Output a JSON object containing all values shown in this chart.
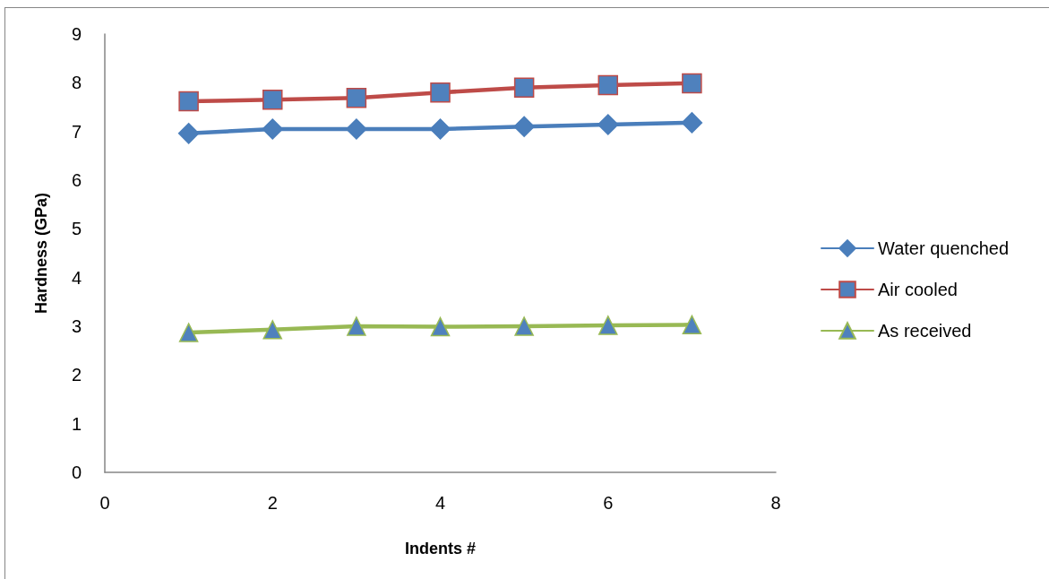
{
  "chart_data": {
    "type": "line",
    "xlabel": "Indents #",
    "ylabel": "Hardness (GPa)",
    "x": [
      1,
      2,
      3,
      4,
      5,
      6,
      7
    ],
    "series": [
      {
        "name": "Water quenched",
        "color": "#4a7ebb",
        "marker": "diamond",
        "values": [
          6.96,
          7.05,
          7.05,
          7.05,
          7.1,
          7.14,
          7.18
        ]
      },
      {
        "name": "Air cooled",
        "color": "#be4b48",
        "marker": "square",
        "colors": [
          "#4f81bd",
          "#4f81bd",
          "#4f81bd",
          "#4f81bd",
          "#4f81bd",
          "#4f81bd",
          "#4f81bd"
        ],
        "values": [
          7.62,
          7.65,
          7.69,
          7.8,
          7.9,
          7.95,
          7.99
        ]
      },
      {
        "name": "As received",
        "color": "#98b954",
        "marker": "triangle",
        "colors": [
          "#4f81bd",
          "#4f81bd",
          "#4f81bd",
          "#4f81bd",
          "#4f81bd",
          "#4f81bd",
          "#4f81bd"
        ],
        "values": [
          2.87,
          2.93,
          3.0,
          2.99,
          3.0,
          3.02,
          3.03
        ]
      }
    ],
    "xlim": [
      0,
      8
    ],
    "xticks": [
      0,
      2,
      4,
      6,
      8
    ],
    "ylim": [
      0,
      9
    ],
    "yticks": [
      0,
      1,
      2,
      3,
      4,
      5,
      6,
      7,
      8,
      9
    ],
    "grid": false,
    "legend": "right"
  }
}
